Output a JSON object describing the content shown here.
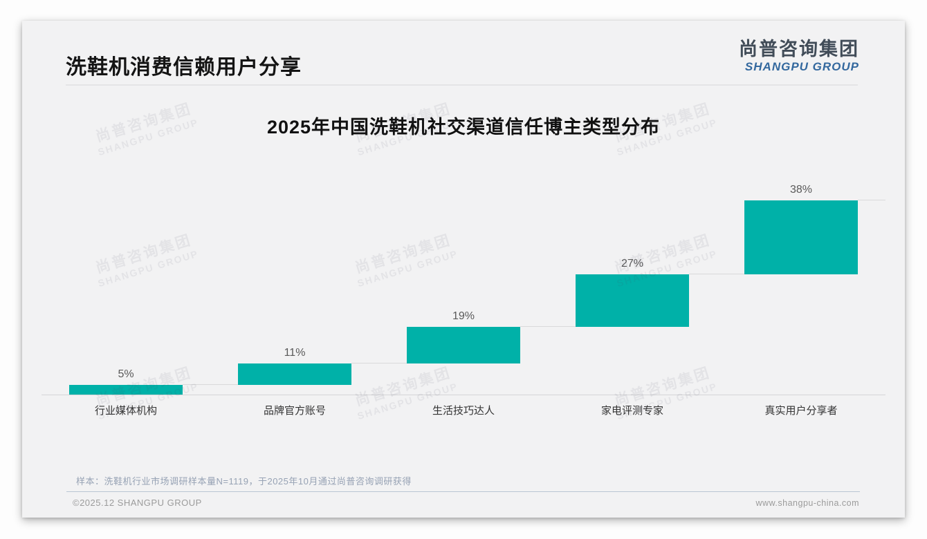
{
  "header": {
    "title": "洗鞋机消费信赖用户分享",
    "logo_cn": "尚普咨询集团",
    "logo_en": "SHANGPU GROUP"
  },
  "chart_data": {
    "type": "bar",
    "subtype": "waterfall-cumulative",
    "title": "2025年中国洗鞋机社交渠道信任博主类型分布",
    "categories": [
      "行业媒体机构",
      "品牌官方账号",
      "生活技巧达人",
      "家电评测专家",
      "真实用户分享者"
    ],
    "values": [
      5,
      11,
      19,
      27,
      38
    ],
    "value_labels": [
      "5%",
      "11%",
      "19%",
      "27%",
      "38%"
    ],
    "unit": "%",
    "ylim": [
      0,
      100
    ],
    "cumulative_total": 100,
    "bar_color": "#00B1A8",
    "connector_color": "#d9d9da",
    "grid": false,
    "legend": "none"
  },
  "watermark": {
    "line1": "尚普咨询集团",
    "line2": "SHANGPU GROUP"
  },
  "footnote": "样本：洗鞋机行业市场调研样本量N=1119，于2025年10月通过尚普咨询调研获得",
  "footer": {
    "left": "©2025.12 SHANGPU GROUP",
    "right": "www.shangpu-china.com"
  },
  "colors": {
    "accent_teal": "#00B1A8",
    "logo_blue": "#33689e",
    "card_bg": "#f2f2f3"
  }
}
